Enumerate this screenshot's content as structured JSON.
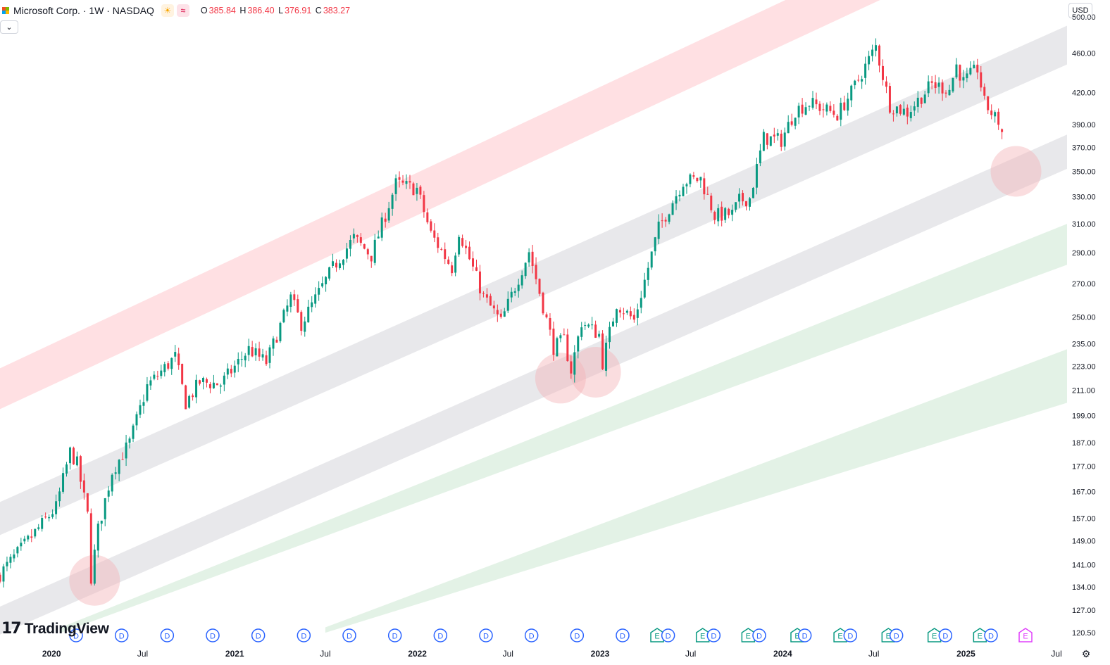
{
  "header": {
    "symbol_title": "Microsoft Corp. · 1W · NASDAQ",
    "ohlc": {
      "o_label": "O",
      "o": "385.84",
      "h_label": "H",
      "h": "386.40",
      "l_label": "L",
      "l": "376.91",
      "c_label": "C",
      "c": "383.27"
    },
    "collapse_icon": "chevron-down-icon",
    "currency": "USD"
  },
  "branding": {
    "logo_mark": "17",
    "logo_text": "TradingView"
  },
  "colors": {
    "up": "#089981",
    "down": "#f23645",
    "channel_red": "#ffe0e3",
    "channel_gray": "#e8e8eb",
    "channel_green": "#e3f2e6",
    "highlight": "#f5b4b9",
    "dividend": "#2962ff",
    "earnings": "#089981",
    "earnings_next": "#e040fb"
  },
  "chart_data": {
    "type": "candlestick",
    "symbol": "MSFT",
    "interval": "1W",
    "scale": "log",
    "ylim": [
      118,
      520
    ],
    "y_ticks": [
      "500.00",
      "460.00",
      "420.00",
      "390.00",
      "370.00",
      "350.00",
      "330.00",
      "310.00",
      "290.00",
      "270.00",
      "250.00",
      "235.00",
      "223.00",
      "211.00",
      "199.00",
      "187.00",
      "177.00",
      "167.00",
      "157.00",
      "149.00",
      "141.00",
      "134.00",
      "127.00",
      "120.50"
    ],
    "x_ticks": [
      {
        "label": "2020",
        "major": true
      },
      {
        "label": "Jul",
        "major": false
      },
      {
        "label": "2021",
        "major": true
      },
      {
        "label": "Jul",
        "major": false
      },
      {
        "label": "2022",
        "major": true
      },
      {
        "label": "Jul",
        "major": false
      },
      {
        "label": "2023",
        "major": true
      },
      {
        "label": "Jul",
        "major": false
      },
      {
        "label": "2024",
        "major": true
      },
      {
        "label": "Jul",
        "major": false
      },
      {
        "label": "2025",
        "major": true
      },
      {
        "label": "Jul",
        "major": false
      }
    ],
    "x_tick_dates": [
      "2020-01-01",
      "2020-07-01",
      "2021-01-01",
      "2021-07-01",
      "2022-01-01",
      "2022-07-01",
      "2023-01-01",
      "2023-07-01",
      "2024-01-01",
      "2024-07-01",
      "2025-01-01",
      "2025-07-01"
    ],
    "xlim": [
      "2019-09-20",
      "2025-07-22"
    ],
    "anchors": [
      {
        "date": "2019-09-20",
        "close": 138
      },
      {
        "date": "2019-11-15",
        "close": 149
      },
      {
        "date": "2020-01-10",
        "close": 161
      },
      {
        "date": "2020-02-07",
        "close": 183
      },
      {
        "date": "2020-02-21",
        "close": 178
      },
      {
        "date": "2020-03-13",
        "close": 158
      },
      {
        "date": "2020-03-20",
        "close": 137
      },
      {
        "date": "2020-04-03",
        "close": 153
      },
      {
        "date": "2020-05-01",
        "close": 175
      },
      {
        "date": "2020-06-05",
        "close": 187
      },
      {
        "date": "2020-07-10",
        "close": 213
      },
      {
        "date": "2020-09-04",
        "close": 228
      },
      {
        "date": "2020-09-25",
        "close": 205
      },
      {
        "date": "2020-10-23",
        "close": 215
      },
      {
        "date": "2020-12-04",
        "close": 214
      },
      {
        "date": "2021-01-29",
        "close": 232
      },
      {
        "date": "2021-03-05",
        "close": 225
      },
      {
        "date": "2021-04-23",
        "close": 261
      },
      {
        "date": "2021-05-14",
        "close": 246
      },
      {
        "date": "2021-07-16",
        "close": 280
      },
      {
        "date": "2021-08-27",
        "close": 300
      },
      {
        "date": "2021-10-01",
        "close": 288
      },
      {
        "date": "2021-11-19",
        "close": 340
      },
      {
        "date": "2021-12-31",
        "close": 336
      },
      {
        "date": "2022-01-28",
        "close": 303
      },
      {
        "date": "2022-03-11",
        "close": 280
      },
      {
        "date": "2022-03-25",
        "close": 305
      },
      {
        "date": "2022-05-13",
        "close": 262
      },
      {
        "date": "2022-06-17",
        "close": 247
      },
      {
        "date": "2022-08-12",
        "close": 291
      },
      {
        "date": "2022-09-30",
        "close": 233
      },
      {
        "date": "2022-10-21",
        "close": 237
      },
      {
        "date": "2022-11-04",
        "close": 221
      },
      {
        "date": "2022-11-25",
        "close": 247
      },
      {
        "date": "2022-12-30",
        "close": 240
      },
      {
        "date": "2023-01-06",
        "close": 225
      },
      {
        "date": "2023-02-03",
        "close": 258
      },
      {
        "date": "2023-03-10",
        "close": 248
      },
      {
        "date": "2023-04-28",
        "close": 307
      },
      {
        "date": "2023-06-16",
        "close": 342
      },
      {
        "date": "2023-07-21",
        "close": 344
      },
      {
        "date": "2023-08-18",
        "close": 316
      },
      {
        "date": "2023-09-22",
        "close": 317
      },
      {
        "date": "2023-10-06",
        "close": 327
      },
      {
        "date": "2023-10-27",
        "close": 329
      },
      {
        "date": "2023-11-24",
        "close": 378
      },
      {
        "date": "2023-12-29",
        "close": 376
      },
      {
        "date": "2024-01-26",
        "close": 403
      },
      {
        "date": "2024-02-23",
        "close": 410
      },
      {
        "date": "2024-04-19",
        "close": 399
      },
      {
        "date": "2024-05-17",
        "close": 420
      },
      {
        "date": "2024-07-05",
        "close": 467
      },
      {
        "date": "2024-08-02",
        "close": 408
      },
      {
        "date": "2024-09-06",
        "close": 401
      },
      {
        "date": "2024-10-25",
        "close": 428
      },
      {
        "date": "2024-11-29",
        "close": 423
      },
      {
        "date": "2024-12-13",
        "close": 447
      },
      {
        "date": "2024-12-27",
        "close": 430
      },
      {
        "date": "2025-01-24",
        "close": 444
      },
      {
        "date": "2025-02-07",
        "close": 410
      },
      {
        "date": "2025-02-28",
        "close": 396
      },
      {
        "date": "2025-03-07",
        "close": 393
      }
    ],
    "last_bar": {
      "o": 385.84,
      "h": 386.4,
      "l": 376.91,
      "c": 383.27
    },
    "channel_bands": [
      {
        "name": "red-band",
        "color": "red",
        "lower": [
          {
            "date": "2019-09-20",
            "price": 202
          },
          {
            "date": "2025-03-21",
            "price": 595
          }
        ],
        "upper": [
          {
            "date": "2019-09-20",
            "price": 222
          },
          {
            "date": "2025-03-21",
            "price": 660
          }
        ]
      },
      {
        "name": "gray-band-upper",
        "color": "gray",
        "lower": [
          {
            "date": "2019-09-20",
            "price": 151
          },
          {
            "date": "2025-07-22",
            "price": 448
          }
        ],
        "upper": [
          {
            "date": "2019-09-20",
            "price": 163
          },
          {
            "date": "2025-07-22",
            "price": 490
          }
        ]
      },
      {
        "name": "gray-band-lower",
        "color": "gray",
        "lower": [
          {
            "date": "2019-09-20",
            "price": 120
          },
          {
            "date": "2025-07-22",
            "price": 352
          }
        ],
        "upper": [
          {
            "date": "2019-09-20",
            "price": 128
          },
          {
            "date": "2025-07-22",
            "price": 381
          }
        ]
      },
      {
        "name": "green-band-upper",
        "color": "green",
        "lower": [
          {
            "date": "2020-01-20",
            "price": 120.5
          },
          {
            "date": "2025-07-22",
            "price": 282
          }
        ],
        "upper": [
          {
            "date": "2020-01-20",
            "price": 122
          },
          {
            "date": "2025-07-22",
            "price": 310
          }
        ]
      },
      {
        "name": "green-band-lower",
        "color": "green",
        "lower": [
          {
            "date": "2021-07-01",
            "price": 120.5
          },
          {
            "date": "2025-07-22",
            "price": 205
          }
        ],
        "upper": [
          {
            "date": "2021-07-01",
            "price": 122
          },
          {
            "date": "2025-07-22",
            "price": 232
          }
        ]
      }
    ],
    "highlights": [
      {
        "date": "2020-03-27",
        "price": 136
      },
      {
        "date": "2022-10-14",
        "price": 217
      },
      {
        "date": "2022-12-23",
        "price": 220
      },
      {
        "date": "2025-04-11",
        "price": 350
      }
    ],
    "events": [
      {
        "date": "2020-02-19",
        "label": "D",
        "type": "dividend"
      },
      {
        "date": "2020-05-20",
        "label": "D",
        "type": "dividend"
      },
      {
        "date": "2020-08-19",
        "label": "D",
        "type": "dividend"
      },
      {
        "date": "2020-11-18",
        "label": "D",
        "type": "dividend"
      },
      {
        "date": "2021-02-17",
        "label": "D",
        "type": "dividend"
      },
      {
        "date": "2021-05-19",
        "label": "D",
        "type": "dividend"
      },
      {
        "date": "2021-08-18",
        "label": "D",
        "type": "dividend"
      },
      {
        "date": "2021-11-17",
        "label": "D",
        "type": "dividend"
      },
      {
        "date": "2022-02-16",
        "label": "D",
        "type": "dividend"
      },
      {
        "date": "2022-05-18",
        "label": "D",
        "type": "dividend"
      },
      {
        "date": "2022-08-17",
        "label": "D",
        "type": "dividend"
      },
      {
        "date": "2022-11-16",
        "label": "D",
        "type": "dividend"
      },
      {
        "date": "2023-02-15",
        "label": "D",
        "type": "dividend"
      },
      {
        "date": "2023-04-25",
        "label": "E",
        "type": "earnings"
      },
      {
        "date": "2023-05-17",
        "label": "D",
        "type": "dividend"
      },
      {
        "date": "2023-07-25",
        "label": "E",
        "type": "earnings"
      },
      {
        "date": "2023-08-16",
        "label": "D",
        "type": "dividend"
      },
      {
        "date": "2023-10-24",
        "label": "E",
        "type": "earnings"
      },
      {
        "date": "2023-11-15",
        "label": "D",
        "type": "dividend"
      },
      {
        "date": "2024-01-30",
        "label": "E",
        "type": "earnings"
      },
      {
        "date": "2024-02-14",
        "label": "D",
        "type": "dividend"
      },
      {
        "date": "2024-04-25",
        "label": "E",
        "type": "earnings"
      },
      {
        "date": "2024-05-15",
        "label": "D",
        "type": "dividend"
      },
      {
        "date": "2024-07-30",
        "label": "E",
        "type": "earnings"
      },
      {
        "date": "2024-08-15",
        "label": "D",
        "type": "dividend"
      },
      {
        "date": "2024-10-30",
        "label": "E",
        "type": "earnings"
      },
      {
        "date": "2024-11-21",
        "label": "D",
        "type": "dividend"
      },
      {
        "date": "2025-01-29",
        "label": "E",
        "type": "earnings"
      },
      {
        "date": "2025-02-20",
        "label": "D",
        "type": "dividend"
      },
      {
        "date": "2025-04-30",
        "label": "E",
        "type": "earnings_next"
      }
    ]
  }
}
